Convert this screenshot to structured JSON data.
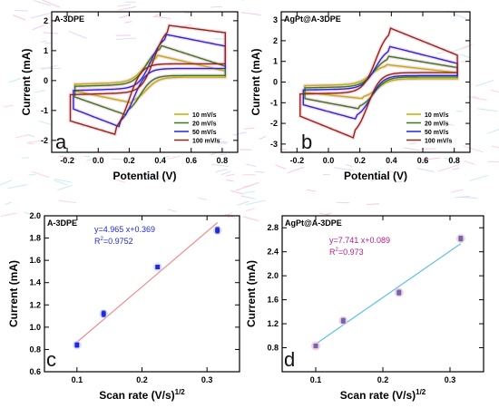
{
  "figure": {
    "colors": {
      "s10": "#b5b400",
      "s20": "#2f7d1e",
      "s50": "#1f2bd6",
      "s100": "#8a2a12",
      "fit_a": "#f08a8a",
      "fit_b": "#5ec2e6",
      "eq_a": "#1f2bd6",
      "eq_b": "#b0218a",
      "pt": "#1f2bd6",
      "pt_b": "#6a6aa8"
    }
  },
  "chart_data": [
    {
      "id": "a",
      "type": "line",
      "title": "A-3DPE",
      "panel_label": "a",
      "xlabel": "Potential (V)",
      "ylabel": "Current (mA)",
      "xlim": [
        -0.3,
        0.9
      ],
      "ylim": [
        -2.4,
        2.3
      ],
      "xticks": [
        -0.2,
        0.0,
        0.2,
        0.4,
        0.6,
        0.8
      ],
      "xtick_labels": [
        "-0.2",
        "0.0",
        "0.2",
        "0.4",
        "0.6",
        "0.8"
      ],
      "yticks": [
        -2,
        -1,
        0,
        1,
        2
      ],
      "ytick_labels": [
        "-2",
        "-1",
        "0",
        "1",
        "2"
      ],
      "legend_position": "bottom-right",
      "legend": [
        "10 mV/s",
        "20 mV/s",
        "50 mV/s",
        "100 mV/s"
      ],
      "series": [
        {
          "name": "10 mV/s",
          "color_key": "s10",
          "E1": -0.15,
          "E2": 0.82,
          "ipa": 0.85,
          "ipc": -0.75,
          "Epa": 0.38,
          "Epc": 0.22,
          "upper_end": 0.32,
          "lower_start": -0.35
        },
        {
          "name": "20 mV/s",
          "color_key": "s20",
          "E1": -0.15,
          "E2": 0.82,
          "ipa": 1.18,
          "ipc": -1.15,
          "Epa": 0.4,
          "Epc": 0.18,
          "upper_end": 0.48,
          "lower_start": -0.55
        },
        {
          "name": "50 mV/s",
          "color_key": "s50",
          "E1": -0.16,
          "E2": 0.82,
          "ipa": 1.55,
          "ipc": -1.55,
          "Epa": 0.43,
          "Epc": 0.14,
          "upper_end": 1.15,
          "lower_start": -0.95
        },
        {
          "name": "100 mV/s",
          "color_key": "s100",
          "E1": -0.18,
          "E2": 0.82,
          "ipa": 1.85,
          "ipc": -1.8,
          "Epa": 0.45,
          "Epc": 0.11,
          "upper_end": 1.6,
          "lower_start": -1.35
        }
      ]
    },
    {
      "id": "b",
      "type": "line",
      "title": "AgPt@A-3DPE",
      "panel_label": "b",
      "xlabel": "Potential (V)",
      "ylabel": "Current (mA)",
      "xlim": [
        -0.3,
        0.9
      ],
      "ylim": [
        -3.4,
        3.4
      ],
      "xticks": [
        -0.2,
        0.0,
        0.2,
        0.4,
        0.6,
        0.8
      ],
      "xtick_labels": [
        "-0.2",
        "0.0",
        "0.2",
        "0.4",
        "0.6",
        "0.8"
      ],
      "yticks": [
        -3,
        -2,
        -1,
        0,
        1,
        2,
        3
      ],
      "ytick_labels": [
        "-3",
        "-2",
        "-1",
        "0",
        "1",
        "2",
        "3"
      ],
      "legend_position": "bottom-right",
      "legend": [
        "10 mV/s",
        "20 mV/s",
        "50 mV/s",
        "100 mV/s"
      ],
      "series": [
        {
          "name": "10 mV/s",
          "color_key": "s10",
          "E1": -0.15,
          "E2": 0.82,
          "ipa": 0.85,
          "ipc": -0.8,
          "Epa": 0.36,
          "Epc": 0.22,
          "upper_end": 0.45,
          "lower_start": -0.5
        },
        {
          "name": "20 mV/s",
          "color_key": "s20",
          "E1": -0.15,
          "E2": 0.82,
          "ipa": 1.25,
          "ipc": -1.3,
          "Epa": 0.38,
          "Epc": 0.2,
          "upper_end": 0.7,
          "lower_start": -0.8
        },
        {
          "name": "50 mV/s",
          "color_key": "s50",
          "E1": -0.16,
          "E2": 0.82,
          "ipa": 1.72,
          "ipc": -1.8,
          "Epa": 0.39,
          "Epc": 0.18,
          "upper_end": 0.9,
          "lower_start": -1.1
        },
        {
          "name": "100 mV/s",
          "color_key": "s100",
          "E1": -0.18,
          "E2": 0.82,
          "ipa": 2.62,
          "ipc": -2.7,
          "Epa": 0.39,
          "Epc": 0.16,
          "upper_end": 1.3,
          "lower_start": -1.65
        }
      ]
    },
    {
      "id": "c",
      "type": "scatter",
      "title": "A-3DPE",
      "panel_label": "c",
      "xlabel": "Scan rate (V/s)",
      "xlabel_sup": "1/2",
      "ylabel": "Current (mA)",
      "xlim": [
        0.05,
        0.35
      ],
      "ylim": [
        0.6,
        2.0
      ],
      "xticks": [
        0.1,
        0.2,
        0.3
      ],
      "xtick_labels": [
        "0.1",
        "0.2",
        "0.3"
      ],
      "yticks": [
        0.6,
        0.8,
        1.0,
        1.2,
        1.4,
        1.6,
        1.8,
        2.0
      ],
      "ytick_labels": [
        "0.6",
        "0.8",
        "1.0",
        "1.2",
        "1.4",
        "1.6",
        "1.8",
        "2.0"
      ],
      "points": [
        {
          "x": 0.1,
          "y": 0.84,
          "err": 0.02
        },
        {
          "x": 0.141,
          "y": 1.12,
          "err": 0.025
        },
        {
          "x": 0.224,
          "y": 1.54,
          "err": 0.015
        },
        {
          "x": 0.316,
          "y": 1.87,
          "err": 0.025
        }
      ],
      "fit": {
        "slope": 4.965,
        "intercept": 0.369,
        "x_range": [
          0.1,
          0.316
        ]
      },
      "equation": "y=4.965 x+0.369",
      "r2_label": "R",
      "r2_sup": "2",
      "r2_value": "=0.9752",
      "fit_color_key": "fit_a",
      "eq_color_key": "eq_a"
    },
    {
      "id": "d",
      "type": "scatter",
      "title": "AgPt@A-3DPE",
      "panel_label": "d",
      "xlabel": "Scan rate (V/s)",
      "xlabel_sup": "1/2",
      "ylabel": "Current (mA)",
      "xlim": [
        0.05,
        0.35
      ],
      "ylim": [
        0.4,
        3.0
      ],
      "xticks": [
        0.1,
        0.2,
        0.3
      ],
      "xtick_labels": [
        "0.1",
        "0.2",
        "0.3"
      ],
      "yticks": [
        0.8,
        1.2,
        1.6,
        2.0,
        2.4,
        2.8
      ],
      "ytick_labels": [
        "0.8",
        "1.2",
        "1.6",
        "2.0",
        "2.4",
        "2.8"
      ],
      "points": [
        {
          "x": 0.1,
          "y": 0.83,
          "err": 0.03
        },
        {
          "x": 0.141,
          "y": 1.25,
          "err": 0.04
        },
        {
          "x": 0.224,
          "y": 1.72,
          "err": 0.04
        },
        {
          "x": 0.316,
          "y": 2.62,
          "err": 0.04
        }
      ],
      "fit": {
        "slope": 7.741,
        "intercept": 0.089,
        "x_range": [
          0.1,
          0.316
        ]
      },
      "equation": "y=7.741 x+0.089",
      "r2_label": "R",
      "r2_sup": "2",
      "r2_value": "=0.973",
      "fit_color_key": "fit_b",
      "eq_color_key": "eq_b"
    }
  ]
}
